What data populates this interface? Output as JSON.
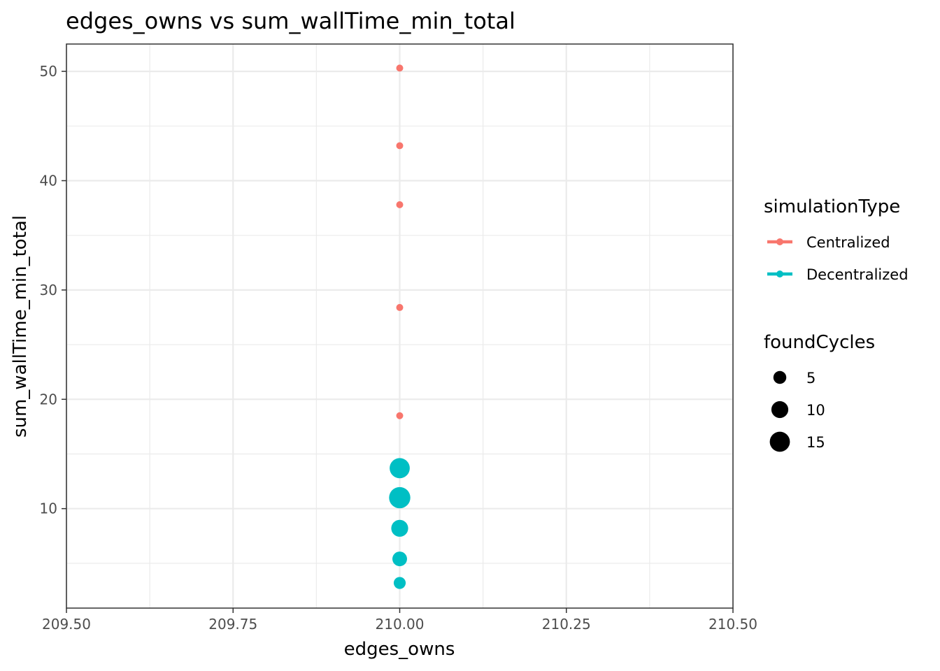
{
  "chart_data": {
    "type": "scatter",
    "title": "edges_owns  vs  sum_wallTime_min_total",
    "xlabel": "edges_owns",
    "ylabel": "sum_wallTime_min_total",
    "xlim": [
      209.5,
      210.5
    ],
    "ylim": [
      0.9,
      52.5
    ],
    "xticks": [
      209.5,
      209.75,
      210.0,
      210.25,
      210.5
    ],
    "xtick_labels": [
      "209.50",
      "209.75",
      "210.00",
      "210.25",
      "210.50"
    ],
    "yticks": [
      10,
      20,
      30,
      40,
      50
    ],
    "ytick_labels": [
      "10",
      "20",
      "30",
      "40",
      "50"
    ],
    "grid": true,
    "series": [
      {
        "name": "Centralized",
        "color": "#F8766D",
        "points": [
          {
            "x": 210.0,
            "y": 50.3,
            "foundCycles": 0
          },
          {
            "x": 210.0,
            "y": 43.2,
            "foundCycles": 0
          },
          {
            "x": 210.0,
            "y": 37.8,
            "foundCycles": 0
          },
          {
            "x": 210.0,
            "y": 28.4,
            "foundCycles": 0
          },
          {
            "x": 210.0,
            "y": 18.5,
            "foundCycles": 0
          }
        ]
      },
      {
        "name": "Decentralized",
        "color": "#00BFC4",
        "points": [
          {
            "x": 210.0,
            "y": 13.7,
            "foundCycles": 15
          },
          {
            "x": 210.0,
            "y": 11.0,
            "foundCycles": 17
          },
          {
            "x": 210.0,
            "y": 8.2,
            "foundCycles": 10
          },
          {
            "x": 210.0,
            "y": 5.4,
            "foundCycles": 7
          },
          {
            "x": 210.0,
            "y": 3.2,
            "foundCycles": 4
          }
        ]
      }
    ],
    "legend": {
      "placement": "right",
      "color_title": "simulationType",
      "color_entries": [
        {
          "label": "Centralized",
          "color": "#F8766D"
        },
        {
          "label": "Decentralized",
          "color": "#00BFC4"
        }
      ],
      "size_title": "foundCycles",
      "size_entries": [
        {
          "label": "5",
          "value": 5
        },
        {
          "label": "10",
          "value": 10
        },
        {
          "label": "15",
          "value": 15
        }
      ]
    }
  }
}
